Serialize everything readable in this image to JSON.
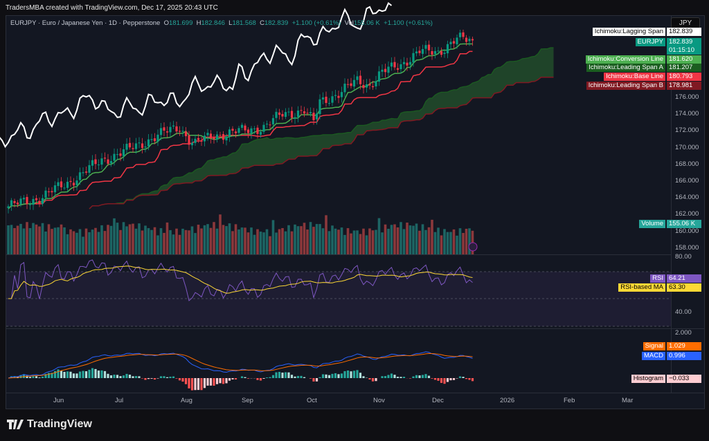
{
  "credit": "TradersMBA created with TradingView.com, Dec 17, 2025 20:43 UTC",
  "legend": {
    "symbol": "EURJPY · Euro / Japanese Yen · 1D · Pepperstone",
    "o_label": "O",
    "o": "181.699",
    "h_label": "H",
    "h": "182.846",
    "l_label": "L",
    "l": "181.568",
    "c_label": "C",
    "c": "182.839",
    "change": "+1.100 (+0.61%)",
    "vol_label": "Vol",
    "vol": "155.06 K",
    "vol_change": "+1.100 (+0.61%)"
  },
  "currency": "JPY",
  "tags": [
    {
      "label": "Ichimoku:Lagging Span",
      "value": "182.839",
      "color": "#ffffff",
      "text": "#000000"
    },
    {
      "label": "EURJPY",
      "value": "182.839",
      "sub": "01:15:10",
      "color": "#089981",
      "text": "#ffffff"
    },
    {
      "label": "Ichimoku:Conversion Line",
      "value": "181.620",
      "color": "#4caf50",
      "text": "#ffffff"
    },
    {
      "label": "Ichimoku:Leading Span A",
      "value": "181.207",
      "color": "#1b5e20",
      "text": "#ffffff"
    },
    {
      "label": "Ichimoku:Base Line",
      "value": "180.793",
      "color": "#f23645",
      "text": "#ffffff"
    },
    {
      "label": "Ichimoku:Leading Span B",
      "value": "178.981",
      "color": "#801922",
      "text": "#ffffff"
    },
    {
      "label": "Volume",
      "value": "155.06 K",
      "color": "#26a69a",
      "text": "#ffffff"
    },
    {
      "label": "RSI",
      "value": "64.21",
      "color": "#7e57c2",
      "text": "#ffffff"
    },
    {
      "label": "RSI-based MA",
      "value": "63.30",
      "color": "#fdd835",
      "text": "#000000"
    },
    {
      "label": "Signal",
      "value": "1.029",
      "color": "#ff6d00",
      "text": "#ffffff"
    },
    {
      "label": "MACD",
      "value": "0.996",
      "color": "#2962ff",
      "text": "#ffffff"
    },
    {
      "label": "Histogram",
      "value": "−0.033",
      "color": "#ffcdd2",
      "text": "#000000"
    }
  ],
  "price_axis": [
    "176.000",
    "174.000",
    "172.000",
    "170.000",
    "168.000",
    "166.000",
    "164.000",
    "162.000",
    "160.000",
    "158.000"
  ],
  "rsi_axis": [
    "80.00",
    "40.00"
  ],
  "macd_axis": [
    "2.000"
  ],
  "time_axis": [
    "Jun",
    "Jul",
    "Aug",
    "Sep",
    "Oct",
    "Nov",
    "Dec",
    "2026",
    "Feb",
    "Mar"
  ],
  "logo": "TradingView",
  "chart_data": {
    "type": "candlestick",
    "symbol": "EURJPY",
    "interval": "1D",
    "ylim": [
      157,
      183
    ],
    "anchors": [
      [
        0,
        163.0
      ],
      [
        10,
        164
      ],
      [
        20,
        166
      ],
      [
        30,
        168.5
      ],
      [
        40,
        170
      ],
      [
        48,
        171.5
      ],
      [
        55,
        172.5
      ],
      [
        58,
        171
      ],
      [
        60,
        170.5
      ],
      [
        66,
        171.5
      ],
      [
        75,
        172
      ],
      [
        82,
        172.5
      ],
      [
        88,
        174
      ],
      [
        95,
        174.5
      ],
      [
        98,
        173
      ],
      [
        100,
        175.5
      ],
      [
        106,
        176.5
      ],
      [
        112,
        178
      ],
      [
        116,
        177.5
      ],
      [
        120,
        179
      ],
      [
        126,
        180
      ],
      [
        132,
        181.5
      ],
      [
        138,
        181.5
      ],
      [
        144,
        183
      ],
      [
        149,
        182.84
      ]
    ],
    "bars": 150,
    "indicators": [
      "Ichimoku (9,26,52,26)",
      "Volume",
      "RSI 14 with MA",
      "MACD 12 26 9"
    ]
  }
}
